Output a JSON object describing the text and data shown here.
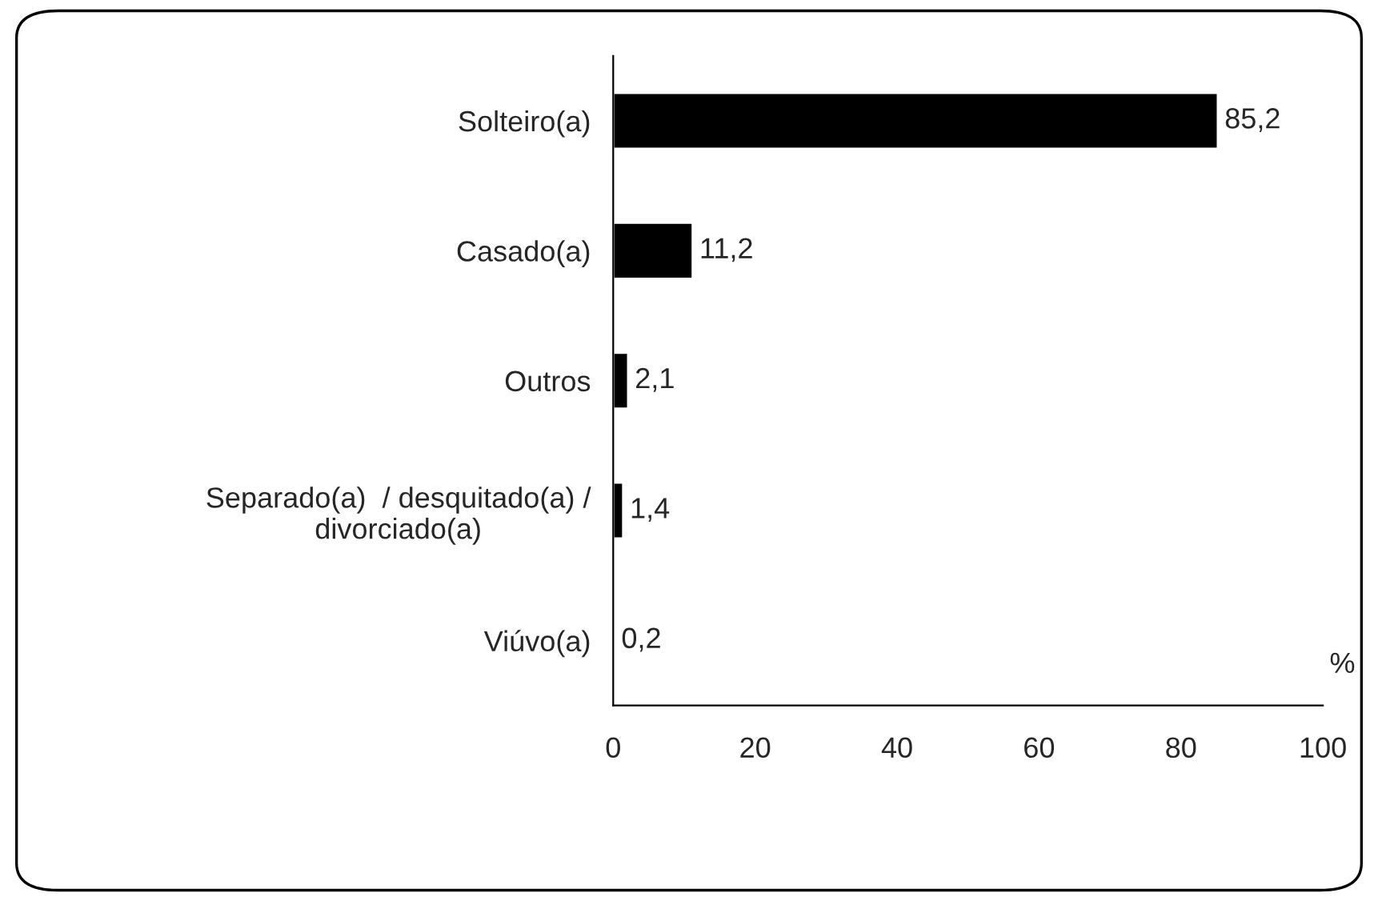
{
  "chart_data": {
    "type": "bar",
    "orientation": "horizontal",
    "xlabel": "%",
    "categories": [
      "Solteiro(a)",
      "Casado(a)",
      "Outros",
      "Separado(a)  / desquitado(a) /\ndivorciado(a)",
      "Viúvo(a)"
    ],
    "values": [
      85.2,
      11.2,
      2.1,
      1.4,
      0.2
    ],
    "value_labels": [
      "85,2",
      "11,2",
      "2,1",
      "1,4",
      "0,2"
    ],
    "color": "#000000",
    "xlim": [
      0,
      100
    ],
    "xticks": [
      0,
      20,
      40,
      60,
      80,
      100
    ],
    "grid": false,
    "legend": false
  }
}
